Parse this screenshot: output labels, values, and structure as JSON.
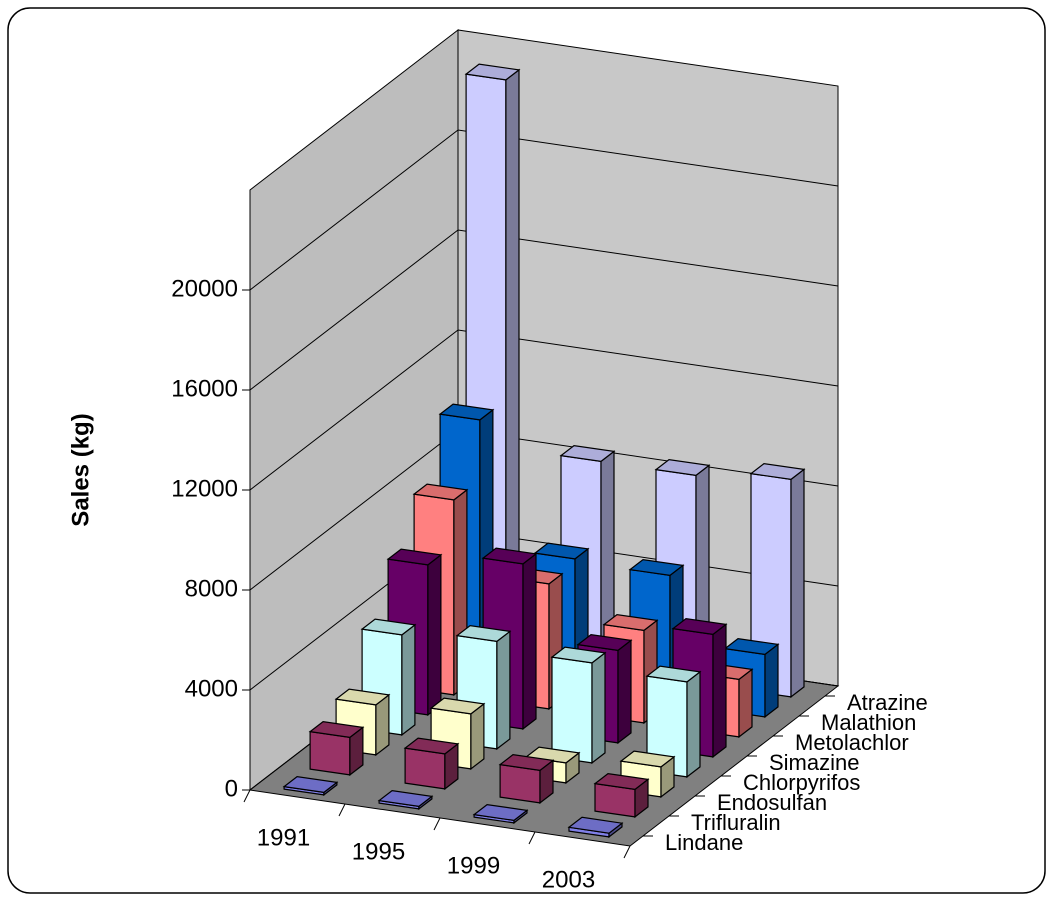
{
  "chart_data": {
    "type": "bar3d",
    "y_label": "Sales (kg)",
    "categories": [
      "1991",
      "1995",
      "1999",
      "2003"
    ],
    "series": [
      {
        "name": "Lindane",
        "color": "#8080e8",
        "values": [
          100,
          100,
          100,
          150
        ]
      },
      {
        "name": "Trifluralin",
        "color": "#993366",
        "values": [
          1500,
          1400,
          1300,
          1100
        ]
      },
      {
        "name": "Endosulfan",
        "color": "#ffffcc",
        "values": [
          2000,
          2200,
          800,
          1200
        ]
      },
      {
        "name": "Chlorpyrifos",
        "color": "#ccffff",
        "values": [
          4000,
          4300,
          4000,
          3800
        ]
      },
      {
        "name": "Simazine",
        "color": "#660066",
        "values": [
          6000,
          6600,
          3700,
          4900
        ]
      },
      {
        "name": "Metolachlor",
        "color": "#ff8080",
        "values": [
          7800,
          5000,
          3700,
          2300
        ]
      },
      {
        "name": "Malathion",
        "color": "#0066cc",
        "values": [
          10200,
          5200,
          5100,
          2500
        ]
      },
      {
        "name": "Atrazine",
        "color": "#ccccff",
        "values": [
          23000,
          8300,
          8300,
          8700
        ]
      }
    ],
    "ylim": [
      0,
      24000
    ],
    "yticks": [
      0,
      4000,
      8000,
      12000,
      16000,
      20000
    ],
    "grid": true
  }
}
